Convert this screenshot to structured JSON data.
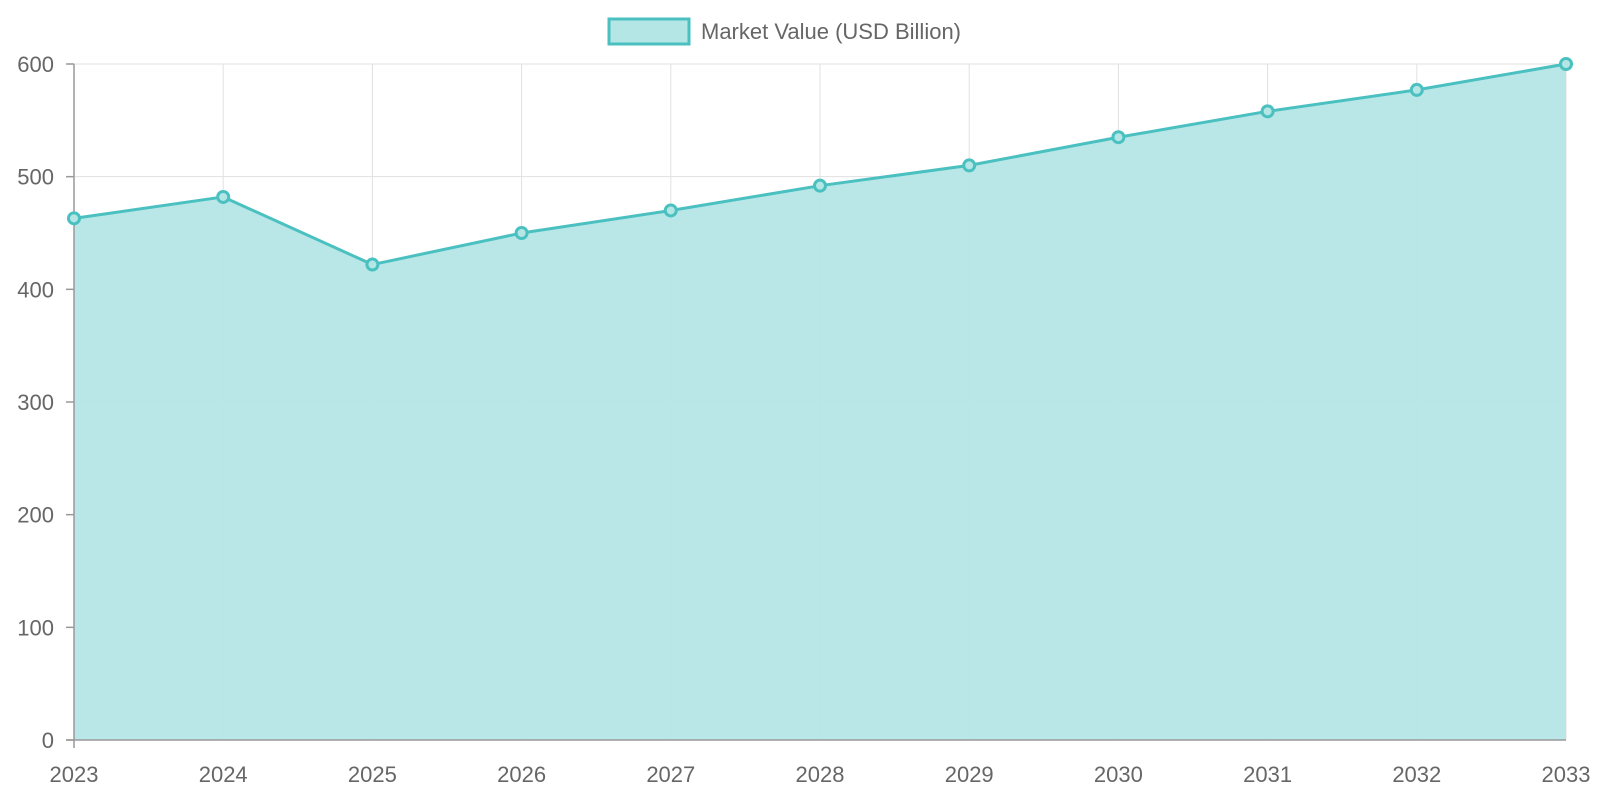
{
  "colors": {
    "series_line": "#4bc0c0",
    "series_fill": "#b5e6e6",
    "grid": "#e0e0e0",
    "axis": "#999999",
    "text": "#666666"
  },
  "chart_data": {
    "type": "area",
    "title": "",
    "xlabel": "",
    "ylabel": "",
    "categories": [
      "2023",
      "2024",
      "2025",
      "2026",
      "2027",
      "2028",
      "2029",
      "2030",
      "2031",
      "2032",
      "2033"
    ],
    "series": [
      {
        "name": "Market Value (USD Billion)",
        "values": [
          463,
          482,
          422,
          450,
          470,
          492,
          510,
          535,
          558,
          577,
          600
        ]
      }
    ],
    "ylim": [
      0,
      600
    ],
    "yticks": [
      0,
      100,
      200,
      300,
      400,
      500,
      600
    ],
    "grid": true,
    "legend_position": "top-center"
  }
}
